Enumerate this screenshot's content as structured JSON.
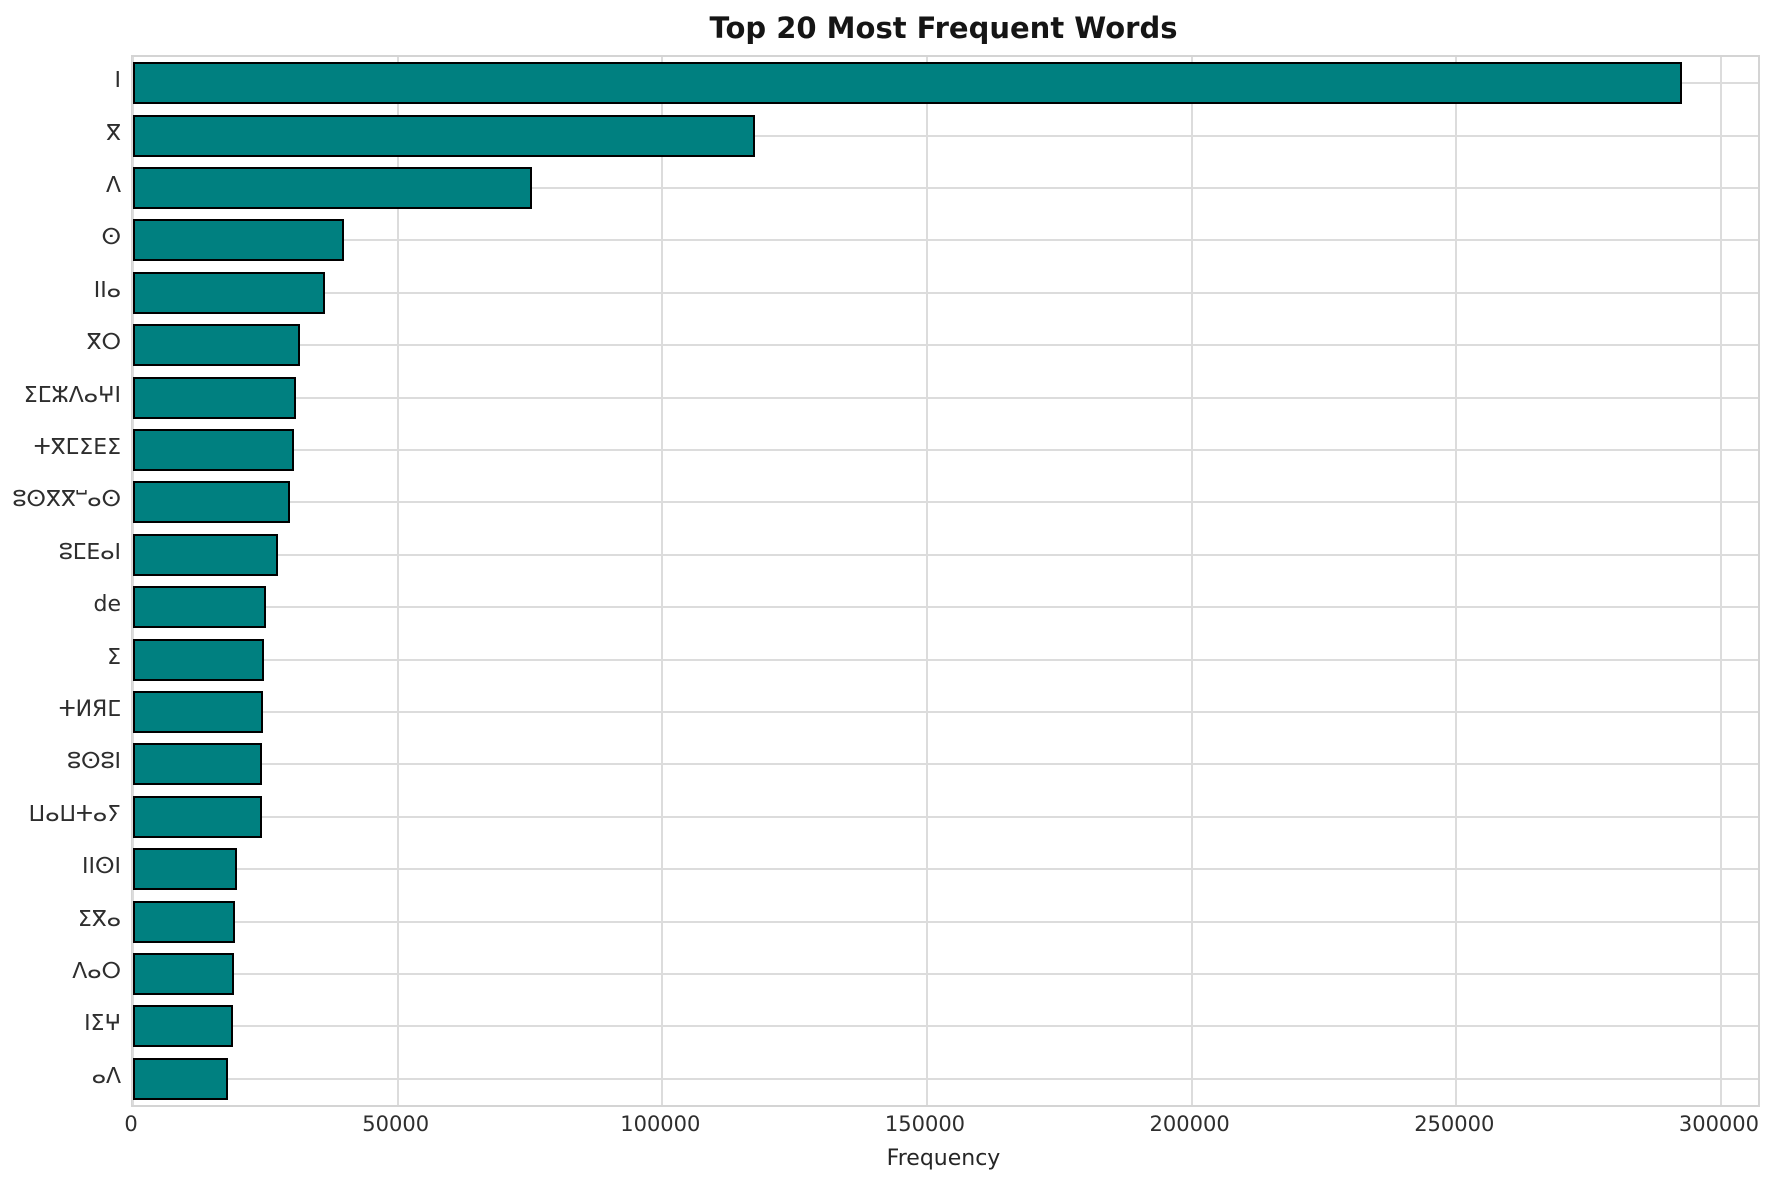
{
  "chart_data": {
    "type": "bar",
    "orientation": "horizontal",
    "title": "Top 20 Most Frequent Words",
    "xlabel": "Frequency",
    "ylabel": "",
    "grid": true,
    "legend": false,
    "categories": [
      "ⵏ",
      "ⴳ",
      "ⴷ",
      "ⵙ",
      "ⵏⵏⴰ",
      "ⴳⵔ",
      "ⵉⵎⵣⴷⴰⵖⵏ",
      "ⵜⴳⵎⵉⴹⵉ",
      "ⵓⵙⴳⴳⵯⴰⵙ",
      "ⵓⵎⴹⴰⵏ",
      "de",
      "ⵉ",
      "ⵜИЯⵎ",
      "ⵓⵙⵓⵏ",
      "ⵡⴰⵡⵜⴰⵢ",
      "ⵏⵏⵙⵏ",
      "ⵉⴳⴰ",
      "ⴷⴰⵔ",
      "ⵏⵉⵖ",
      "ⴰⴷ"
    ],
    "values": [
      292600,
      117500,
      75300,
      39800,
      36200,
      31500,
      30800,
      30400,
      29600,
      27400,
      25200,
      24800,
      24500,
      24400,
      24300,
      19600,
      19300,
      19000,
      18900,
      17900
    ],
    "xlim": [
      0,
      307000
    ],
    "xticks": [
      0,
      50000,
      100000,
      150000,
      200000,
      250000,
      300000
    ],
    "bar_color": "#008080",
    "bar_edge_color": "#000000",
    "grid_color": "#dcdcdc",
    "background_color": "#ffffff"
  }
}
